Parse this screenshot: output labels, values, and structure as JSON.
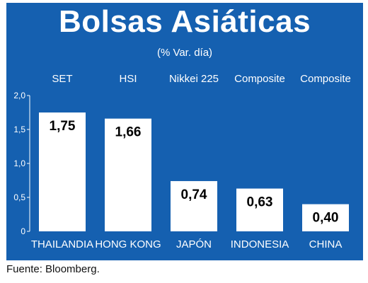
{
  "title": "Bolsas Asiáticas",
  "subtitle": "(% Var. día)",
  "source": "Fuente: Bloomberg.",
  "colors": {
    "background": "#1560b0",
    "bar": "#ffffff",
    "text": "#ffffff",
    "value_text": "#000000"
  },
  "chart_data": {
    "type": "bar",
    "title": "Bolsas Asiáticas",
    "subtitle": "(% Var. día)",
    "index_labels": [
      "SET",
      "HSI",
      "Nikkei 225",
      "Composite",
      "Composite"
    ],
    "categories": [
      "THAILANDIA",
      "HONG KONG",
      "JAPÓN",
      "INDONESIA",
      "CHINA"
    ],
    "values": [
      1.75,
      1.66,
      0.74,
      0.63,
      0.4
    ],
    "value_labels": [
      "1,75",
      "1,66",
      "0,74",
      "0,63",
      "0,40"
    ],
    "yticks": [
      0,
      0.5,
      1.0,
      1.5,
      2.0
    ],
    "ytick_labels": [
      "0",
      "0,5",
      "1,0",
      "1,5",
      "2,0"
    ],
    "ylim": [
      0,
      2.0
    ],
    "xlabel": "",
    "ylabel": "",
    "grid": false,
    "legend": "none"
  }
}
